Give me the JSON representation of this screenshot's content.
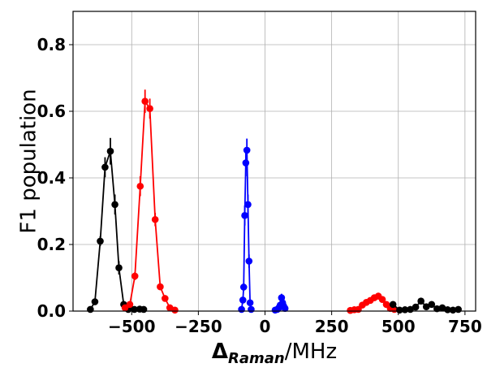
{
  "chart_data": {
    "type": "line",
    "xlabel": {
      "main": "Δ",
      "sub": "Raman",
      "unit": "/MHz"
    },
    "ylabel": "F1 population",
    "xlim": [
      -720,
      790
    ],
    "ylim": [
      0,
      0.9
    ],
    "x_ticks": [
      -500,
      -250,
      0,
      250,
      500,
      750
    ],
    "x_tick_labels": [
      "−500",
      "−250",
      "0",
      "250",
      "500",
      "750"
    ],
    "y_ticks": [
      0.0,
      0.2,
      0.4,
      0.6,
      0.8
    ],
    "y_tick_labels": [
      "0.0",
      "0.2",
      "0.4",
      "0.6",
      "0.8"
    ],
    "grid": true,
    "series": [
      {
        "color": "#000000",
        "points": [
          {
            "x": -655,
            "y": 0.005,
            "err": 0.005
          },
          {
            "x": -638,
            "y": 0.028,
            "err": 0.006
          },
          {
            "x": -618,
            "y": 0.21,
            "err": 0.015
          },
          {
            "x": -600,
            "y": 0.432,
            "err": 0.03
          },
          {
            "x": -580,
            "y": 0.48,
            "err": 0.04
          },
          {
            "x": -563,
            "y": 0.32,
            "err": 0.03
          },
          {
            "x": -548,
            "y": 0.13,
            "err": 0.02
          },
          {
            "x": -530,
            "y": 0.02,
            "err": 0.006
          },
          {
            "x": -513,
            "y": 0.005,
            "err": 0.005
          }
        ]
      },
      {
        "color": "#000000",
        "points": [
          {
            "x": -508,
            "y": 0.01,
            "err": 0.004
          },
          {
            "x": -490,
            "y": 0.005,
            "err": 0.004
          },
          {
            "x": -470,
            "y": 0.006,
            "err": 0.004
          },
          {
            "x": -455,
            "y": 0.005,
            "err": 0.004
          }
        ]
      },
      {
        "color": "#ff0000",
        "points": [
          {
            "x": -525,
            "y": 0.01,
            "err": 0.004
          },
          {
            "x": -507,
            "y": 0.02,
            "err": 0.005
          },
          {
            "x": -488,
            "y": 0.105,
            "err": 0.012
          },
          {
            "x": -468,
            "y": 0.375,
            "err": 0.03
          },
          {
            "x": -450,
            "y": 0.63,
            "err": 0.035
          },
          {
            "x": -432,
            "y": 0.608,
            "err": 0.03
          },
          {
            "x": -412,
            "y": 0.275,
            "err": 0.02
          },
          {
            "x": -393,
            "y": 0.073,
            "err": 0.01
          },
          {
            "x": -375,
            "y": 0.038,
            "err": 0.008
          },
          {
            "x": -357,
            "y": 0.01,
            "err": 0.004
          },
          {
            "x": -338,
            "y": 0.003,
            "err": 0.003
          }
        ]
      },
      {
        "color": "#0000ff",
        "points": [
          {
            "x": -88,
            "y": 0.005,
            "err": 0.004
          },
          {
            "x": -83,
            "y": 0.033,
            "err": 0.006
          },
          {
            "x": -80,
            "y": 0.072,
            "err": 0.01
          },
          {
            "x": -76,
            "y": 0.287,
            "err": 0.03
          },
          {
            "x": -72,
            "y": 0.445,
            "err": 0.04
          },
          {
            "x": -68,
            "y": 0.483,
            "err": 0.035
          },
          {
            "x": -64,
            "y": 0.32,
            "err": 0.03
          },
          {
            "x": -60,
            "y": 0.15,
            "err": 0.02
          },
          {
            "x": -56,
            "y": 0.025,
            "err": 0.006
          },
          {
            "x": -52,
            "y": 0.005,
            "err": 0.004
          }
        ]
      },
      {
        "color": "#0000ff",
        "points": [
          {
            "x": 38,
            "y": 0.003,
            "err": 0.003
          },
          {
            "x": 46,
            "y": 0.005,
            "err": 0.004
          },
          {
            "x": 52,
            "y": 0.01,
            "err": 0.005
          },
          {
            "x": 57,
            "y": 0.018,
            "err": 0.006
          },
          {
            "x": 62,
            "y": 0.04,
            "err": 0.012
          },
          {
            "x": 66,
            "y": 0.025,
            "err": 0.008
          },
          {
            "x": 70,
            "y": 0.015,
            "err": 0.005
          },
          {
            "x": 75,
            "y": 0.008,
            "err": 0.004
          }
        ]
      },
      {
        "color": "#ff0000",
        "points": [
          {
            "x": 320,
            "y": 0.002,
            "err": 0.002
          },
          {
            "x": 335,
            "y": 0.004,
            "err": 0.003
          },
          {
            "x": 350,
            "y": 0.005,
            "err": 0.003
          },
          {
            "x": 365,
            "y": 0.018,
            "err": 0.005
          },
          {
            "x": 380,
            "y": 0.026,
            "err": 0.005
          },
          {
            "x": 395,
            "y": 0.032,
            "err": 0.006
          },
          {
            "x": 410,
            "y": 0.04,
            "err": 0.008
          },
          {
            "x": 425,
            "y": 0.045,
            "err": 0.01
          },
          {
            "x": 440,
            "y": 0.035,
            "err": 0.007
          },
          {
            "x": 455,
            "y": 0.02,
            "err": 0.006
          },
          {
            "x": 470,
            "y": 0.008,
            "err": 0.004
          },
          {
            "x": 485,
            "y": 0.005,
            "err": 0.003
          }
        ]
      },
      {
        "color": "#000000",
        "points": [
          {
            "x": 480,
            "y": 0.02,
            "err": 0.004
          },
          {
            "x": 505,
            "y": 0.003,
            "err": 0.003
          },
          {
            "x": 525,
            "y": 0.004,
            "err": 0.003
          },
          {
            "x": 545,
            "y": 0.005,
            "err": 0.003
          },
          {
            "x": 565,
            "y": 0.012,
            "err": 0.004
          },
          {
            "x": 585,
            "y": 0.03,
            "err": 0.006
          },
          {
            "x": 605,
            "y": 0.013,
            "err": 0.004
          },
          {
            "x": 625,
            "y": 0.02,
            "err": 0.005
          },
          {
            "x": 645,
            "y": 0.007,
            "err": 0.003
          },
          {
            "x": 665,
            "y": 0.01,
            "err": 0.004
          },
          {
            "x": 685,
            "y": 0.004,
            "err": 0.003
          },
          {
            "x": 705,
            "y": 0.003,
            "err": 0.003
          },
          {
            "x": 725,
            "y": 0.005,
            "err": 0.003
          }
        ]
      }
    ]
  }
}
